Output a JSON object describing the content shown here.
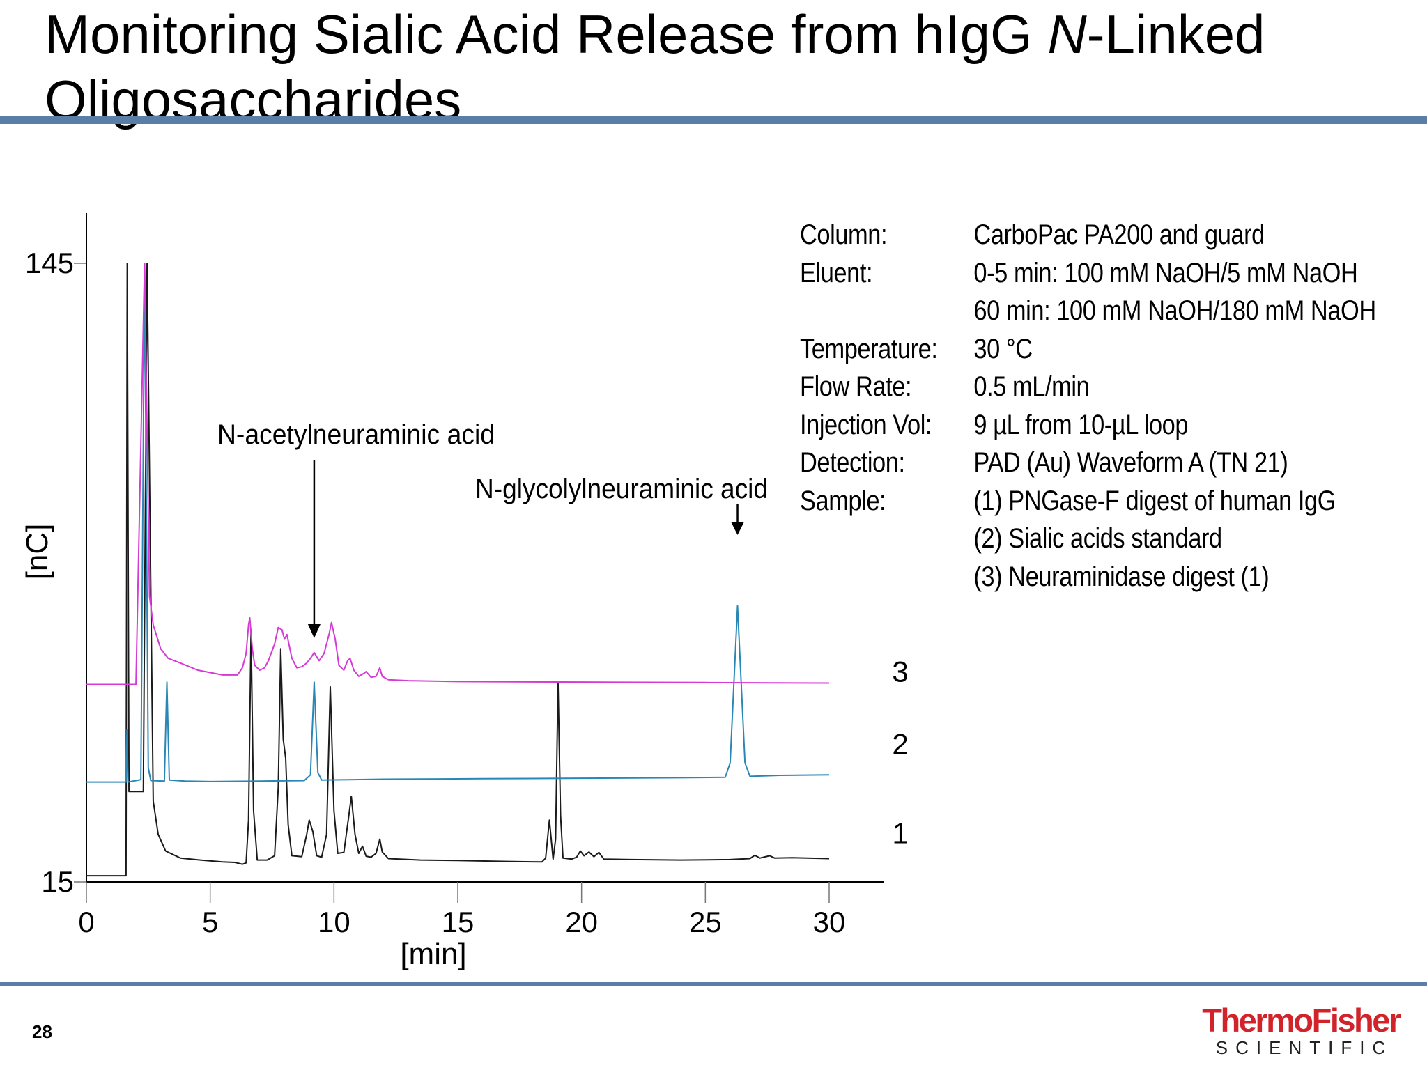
{
  "slide": {
    "title_part1": "Monitoring Sialic Acid Release from hIgG ",
    "title_italic": "N",
    "title_part2": "-Linked Oligosaccharides",
    "page_number": "28"
  },
  "conditions": [
    {
      "label": "Column:",
      "value": "CarboPac PA200 and guard"
    },
    {
      "label": "Eluent:",
      "value": "0-5 min: 100 mM NaOH/5 mM NaOH"
    },
    {
      "label": "",
      "value": "60 min: 100 mM NaOH/180 mM NaOH"
    },
    {
      "label": "Temperature:",
      "value": "30 °C"
    },
    {
      "label": "Flow Rate:",
      "value": "0.5 mL/min"
    },
    {
      "label": "Injection Vol:",
      "value": "9 µL from 10-µL loop"
    },
    {
      "label": "Detection:",
      "value": "PAD (Au) Waveform A (TN 21)"
    },
    {
      "label": "Sample:",
      "value": "(1) PNGase-F digest of human IgG"
    },
    {
      "label": "",
      "value": "(2) Sialic acids standard"
    },
    {
      "label": "",
      "value": "(3) Neuraminidase digest (1)"
    }
  ],
  "logo": {
    "main": "ThermoFisher",
    "sub": "SCIENTIFIC"
  },
  "chart_data": {
    "type": "line",
    "xlabel": "[min]",
    "ylabel": "[nC]",
    "xlim": [
      0,
      30
    ],
    "ylim": [
      15,
      145
    ],
    "xticks": [
      0,
      5,
      10,
      15,
      20,
      25,
      30
    ],
    "yticks": [
      15,
      145
    ],
    "grid": false,
    "annotations": [
      {
        "text": "N-acetylneuraminic acid",
        "x": 9.2
      },
      {
        "text": "N-glycolylneuraminic acid",
        "x": 26.3
      }
    ],
    "series": [
      {
        "name": "1",
        "color": "#1a1a1a",
        "points": [
          [
            0,
            16.3
          ],
          [
            1.6,
            16.3
          ],
          [
            1.65,
            145
          ],
          [
            1.72,
            34
          ],
          [
            2.3,
            34
          ],
          [
            2.45,
            145
          ],
          [
            2.7,
            32
          ],
          [
            2.9,
            25
          ],
          [
            3.2,
            21.5
          ],
          [
            3.8,
            20
          ],
          [
            4.6,
            19.6
          ],
          [
            5.5,
            19.2
          ],
          [
            6.0,
            19.1
          ],
          [
            6.3,
            18.7
          ],
          [
            6.45,
            19.0
          ],
          [
            6.55,
            28
          ],
          [
            6.65,
            68
          ],
          [
            6.75,
            30
          ],
          [
            6.9,
            19.6
          ],
          [
            7.3,
            19.6
          ],
          [
            7.6,
            20.5
          ],
          [
            7.75,
            35
          ],
          [
            7.85,
            64
          ],
          [
            7.95,
            45
          ],
          [
            8.05,
            41
          ],
          [
            8.15,
            27
          ],
          [
            8.3,
            20.5
          ],
          [
            8.7,
            20.3
          ],
          [
            8.9,
            25
          ],
          [
            9.0,
            28
          ],
          [
            9.15,
            25.5
          ],
          [
            9.3,
            20.5
          ],
          [
            9.5,
            20.2
          ],
          [
            9.7,
            25
          ],
          [
            9.85,
            56
          ],
          [
            10.0,
            30
          ],
          [
            10.15,
            21
          ],
          [
            10.4,
            21.2
          ],
          [
            10.6,
            29
          ],
          [
            10.7,
            33
          ],
          [
            10.85,
            25
          ],
          [
            11.0,
            21.0
          ],
          [
            11.15,
            22.5
          ],
          [
            11.3,
            20.4
          ],
          [
            11.5,
            20.2
          ],
          [
            11.7,
            21
          ],
          [
            11.85,
            24
          ],
          [
            11.95,
            21.3
          ],
          [
            12.2,
            19.9
          ],
          [
            13.5,
            19.6
          ],
          [
            15,
            19.5
          ],
          [
            17,
            19.3
          ],
          [
            18.4,
            19.2
          ],
          [
            18.55,
            20
          ],
          [
            18.7,
            28
          ],
          [
            18.85,
            19.8
          ],
          [
            18.95,
            24
          ],
          [
            19.05,
            57
          ],
          [
            19.15,
            29
          ],
          [
            19.25,
            20
          ],
          [
            19.6,
            19.8
          ],
          [
            19.8,
            20.2
          ],
          [
            19.95,
            21.5
          ],
          [
            20.1,
            20.5
          ],
          [
            20.3,
            21.3
          ],
          [
            20.5,
            20.3
          ],
          [
            20.7,
            21.2
          ],
          [
            20.9,
            19.8
          ],
          [
            22,
            19.7
          ],
          [
            24,
            19.6
          ],
          [
            26,
            19.7
          ],
          [
            26.8,
            19.9
          ],
          [
            27.0,
            20.6
          ],
          [
            27.2,
            20.0
          ],
          [
            27.6,
            20.5
          ],
          [
            27.8,
            20.0
          ],
          [
            28.5,
            20.1
          ],
          [
            30,
            19.9
          ]
        ]
      },
      {
        "name": "2",
        "color": "#2a87b5",
        "points": [
          [
            0,
            36
          ],
          [
            1.6,
            36
          ],
          [
            1.64,
            47
          ],
          [
            1.68,
            36
          ],
          [
            2.2,
            36.5
          ],
          [
            2.35,
            145
          ],
          [
            2.5,
            39
          ],
          [
            2.6,
            36.3
          ],
          [
            3.15,
            36.2
          ],
          [
            3.25,
            57
          ],
          [
            3.35,
            36.4
          ],
          [
            4,
            36.2
          ],
          [
            5,
            36.1
          ],
          [
            7,
            36.2
          ],
          [
            8.8,
            36.3
          ],
          [
            9.05,
            37.5
          ],
          [
            9.2,
            57
          ],
          [
            9.35,
            38
          ],
          [
            9.5,
            36.4
          ],
          [
            12,
            36.6
          ],
          [
            16,
            36.7
          ],
          [
            20,
            36.8
          ],
          [
            24,
            36.9
          ],
          [
            25.8,
            37
          ],
          [
            26.0,
            40
          ],
          [
            26.3,
            73
          ],
          [
            26.6,
            40
          ],
          [
            26.8,
            37.2
          ],
          [
            28,
            37.4
          ],
          [
            30,
            37.5
          ]
        ]
      },
      {
        "name": "3",
        "color": "#d63ad6",
        "points": [
          [
            0,
            56.5
          ],
          [
            2,
            56.5
          ],
          [
            2.35,
            145
          ],
          [
            2.55,
            75
          ],
          [
            2.7,
            69
          ],
          [
            3.0,
            64
          ],
          [
            3.3,
            62
          ],
          [
            3.8,
            61
          ],
          [
            4.5,
            59.5
          ],
          [
            5.5,
            58.5
          ],
          [
            6.1,
            58.5
          ],
          [
            6.3,
            60
          ],
          [
            6.45,
            63
          ],
          [
            6.55,
            69
          ],
          [
            6.6,
            70.5
          ],
          [
            6.7,
            64
          ],
          [
            6.8,
            60.5
          ],
          [
            7.0,
            59.5
          ],
          [
            7.2,
            60
          ],
          [
            7.35,
            61.5
          ],
          [
            7.6,
            65
          ],
          [
            7.75,
            68.5
          ],
          [
            7.9,
            68
          ],
          [
            8.0,
            66
          ],
          [
            8.1,
            67
          ],
          [
            8.3,
            62
          ],
          [
            8.5,
            60
          ],
          [
            8.7,
            60.2
          ],
          [
            8.9,
            61
          ],
          [
            9.05,
            62
          ],
          [
            9.2,
            63.2
          ],
          [
            9.4,
            61.5
          ],
          [
            9.6,
            63
          ],
          [
            9.8,
            67
          ],
          [
            9.9,
            69.5
          ],
          [
            10.05,
            66
          ],
          [
            10.2,
            60.5
          ],
          [
            10.4,
            59.5
          ],
          [
            10.55,
            61.5
          ],
          [
            10.65,
            62
          ],
          [
            10.8,
            59.5
          ],
          [
            11.0,
            58.2
          ],
          [
            11.2,
            58.8
          ],
          [
            11.3,
            59.2
          ],
          [
            11.5,
            58.0
          ],
          [
            11.7,
            58.2
          ],
          [
            11.85,
            60
          ],
          [
            11.95,
            58.2
          ],
          [
            12.2,
            57.5
          ],
          [
            13,
            57.3
          ],
          [
            15,
            57.1
          ],
          [
            20,
            57.0
          ],
          [
            25,
            56.9
          ],
          [
            30,
            56.8
          ]
        ]
      }
    ]
  }
}
